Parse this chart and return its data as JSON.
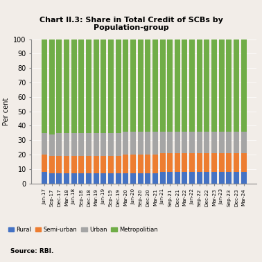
{
  "title": "Chart II.3: Share in Total Credit of SCBs by\nPopulation-group",
  "ylabel": "Per cent",
  "source": "Source: RBI.",
  "categories": [
    "Jun-17",
    "Sep-17",
    "Dec-17",
    "Mar-18",
    "Jun-18",
    "Sep-18",
    "Dec-18",
    "Mar-19",
    "Jun-19",
    "Sep-19",
    "Dec-19",
    "Mar-20",
    "Jun-20",
    "Sep-20",
    "Dec-20",
    "Mar-21",
    "Jun-21",
    "Sep-21",
    "Dec-21",
    "Mar-22",
    "Jun-22",
    "Sep-22",
    "Dec-22",
    "Mar-23",
    "Jun-23",
    "Sep-23",
    "Dec-23",
    "Mar-24"
  ],
  "rural": [
    8,
    7,
    7,
    7,
    7,
    7,
    7,
    7,
    7,
    7,
    7,
    7,
    7,
    7,
    7,
    7,
    8,
    8,
    8,
    8,
    8,
    8,
    8,
    8,
    8,
    8,
    8,
    8
  ],
  "semiurban": [
    12,
    12,
    12,
    12,
    12,
    12,
    12,
    12,
    12,
    12,
    12,
    13,
    13,
    13,
    13,
    13,
    13,
    13,
    13,
    13,
    13,
    13,
    13,
    13,
    13,
    13,
    13,
    13
  ],
  "urban": [
    15,
    15,
    16,
    16,
    16,
    16,
    16,
    16,
    16,
    16,
    16,
    16,
    16,
    16,
    16,
    16,
    15,
    15,
    15,
    15,
    15,
    15,
    15,
    15,
    15,
    15,
    15,
    15
  ],
  "metro": [
    65,
    66,
    65,
    65,
    65,
    65,
    65,
    65,
    65,
    65,
    65,
    64,
    64,
    64,
    64,
    64,
    64,
    64,
    64,
    64,
    64,
    64,
    64,
    64,
    64,
    64,
    64,
    64
  ],
  "colors": {
    "rural": "#4472C4",
    "semiurban": "#ED7D31",
    "urban": "#A5A5A5",
    "metro": "#70AD47"
  },
  "ylim": [
    0,
    100
  ],
  "yticks": [
    0,
    10,
    20,
    30,
    40,
    50,
    60,
    70,
    80,
    90,
    100
  ],
  "bg_color": "#F2EDE8",
  "legend": [
    "Rural",
    "Semi-urban",
    "Urban",
    "Metropolitian"
  ],
  "bar_width": 0.75
}
